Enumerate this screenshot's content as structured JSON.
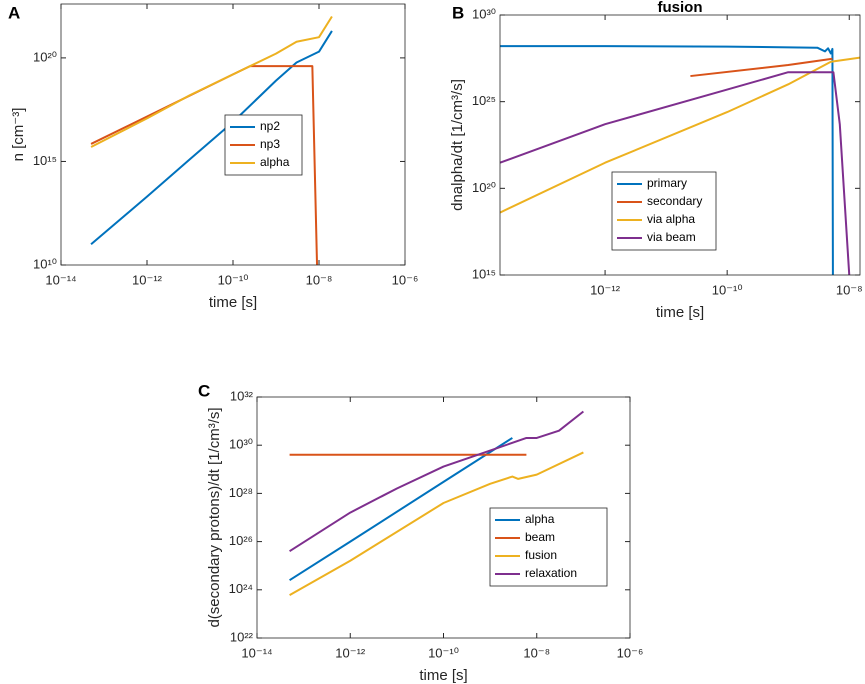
{
  "chart_data": [
    {
      "type": "line",
      "panel": "A",
      "xlabel": "time [s]",
      "ylabel": "n [cm⁻³]",
      "xscale": "log",
      "yscale": "log",
      "xlim": [
        1e-14,
        1e-06
      ],
      "ylim": [
        10000000000.0,
        4e+22
      ],
      "xticks": [
        {
          "value": 1e-14,
          "label": "10⁻¹⁴"
        },
        {
          "value": 1e-12,
          "label": "10⁻¹²"
        },
        {
          "value": 1e-10,
          "label": "10⁻¹⁰"
        },
        {
          "value": 1e-08,
          "label": "10⁻⁸"
        },
        {
          "value": 1e-06,
          "label": "10⁻⁶"
        }
      ],
      "yticks": [
        {
          "value": 10000000000.0,
          "label": "10¹⁰"
        },
        {
          "value": 1000000000000000.0,
          "label": "10¹⁵"
        },
        {
          "value": 1e+20,
          "label": "10²⁰"
        }
      ],
      "series": [
        {
          "name": "np2",
          "color": "#0072BD",
          "x": [
            5e-14,
            1e-12,
            1e-11,
            1e-10,
            1e-09,
            3e-09,
            1e-08,
            2e-08
          ],
          "values": [
            100000000000.0,
            20000000000000.0,
            1300000000000000.0,
            8e+16,
            8e+18,
            6e+19,
            2e+20,
            2e+21
          ]
        },
        {
          "name": "np3",
          "color": "#D95319",
          "x": [
            5e-14,
            1e-10,
            2.5e-10,
            7e-09,
            9e-09
          ],
          "values": [
            7000000000000000.0,
            1.6e+19,
            4e+19,
            4e+19,
            10000000000.0
          ]
        },
        {
          "name": "alpha",
          "color": "#EDB120",
          "x": [
            5e-14,
            1e-12,
            1e-11,
            1e-10,
            1e-09,
            3e-09,
            1e-08,
            2e-08
          ],
          "values": [
            5000000000000000.0,
            1.2e+17,
            1.6e+18,
            1.6e+19,
            1.6e+20,
            6e+20,
            1e+21,
            1e+22
          ]
        }
      ]
    },
    {
      "type": "line",
      "panel": "B",
      "title": "fusion",
      "xlabel": "time [s]",
      "ylabel": "dnalpha/dt [1/cm³/s]",
      "xscale": "log",
      "yscale": "log",
      "xlim": [
        1.9e-14,
        1.5e-08
      ],
      "ylim": [
        1000000000000000.0,
        1e+30
      ],
      "xticks": [
        {
          "value": 1e-12,
          "label": "10⁻¹²"
        },
        {
          "value": 1e-10,
          "label": "10⁻¹⁰"
        },
        {
          "value": 1e-08,
          "label": "10⁻⁸"
        }
      ],
      "yticks": [
        {
          "value": 1000000000000000.0,
          "label": "10¹⁵"
        },
        {
          "value": 1e+20,
          "label": "10²⁰"
        },
        {
          "value": 1e+25,
          "label": "10²⁵"
        },
        {
          "value": 1e+30,
          "label": "10³⁰"
        }
      ],
      "series": [
        {
          "name": "primary",
          "color": "#0072BD",
          "x": [
            1.9e-14,
            1e-12,
            1e-10,
            3e-09,
            4e-09,
            4.5e-09,
            5e-09,
            5.3e-09,
            5.4e-09
          ],
          "values": [
            1.6e+28,
            1.6e+28,
            1.5e+28,
            1.3e+28,
            8e+27,
            1.2e+28,
            6e+27,
            1.1e+28,
            1000000000000000.0
          ]
        },
        {
          "name": "secondary",
          "color": "#D95319",
          "x": [
            2.5e-11,
            1e-09,
            5.3e-09
          ],
          "values": [
            3e+26,
            1.3e+27,
            3e+27
          ]
        },
        {
          "name": "via alpha",
          "color": "#EDB120",
          "x": [
            1.9e-14,
            1e-12,
            1e-10,
            1e-09,
            5e-09,
            1.5e-08
          ],
          "values": [
            4e+18,
            3e+21,
            2.5e+24,
            1e+26,
            2e+27,
            3.5e+27
          ]
        },
        {
          "name": "via beam",
          "color": "#7E2F8E",
          "x": [
            1.9e-14,
            1e-12,
            1e-10,
            1e-09,
            5.5e-09,
            7e-09,
            1e-08
          ],
          "values": [
            3e+21,
            5e+23,
            5e+25,
            5e+26,
            5e+26,
            5e+23,
            1000000000000000.0
          ]
        }
      ]
    },
    {
      "type": "line",
      "panel": "C",
      "xlabel": "time [s]",
      "ylabel": "d(secondary protons)/dt [1/cm³/s]",
      "xscale": "log",
      "yscale": "log",
      "xlim": [
        1e-14,
        1e-06
      ],
      "ylim": [
        1e+22,
        1e+32
      ],
      "xticks": [
        {
          "value": 1e-14,
          "label": "10⁻¹⁴"
        },
        {
          "value": 1e-12,
          "label": "10⁻¹²"
        },
        {
          "value": 1e-10,
          "label": "10⁻¹⁰"
        },
        {
          "value": 1e-08,
          "label": "10⁻⁸"
        },
        {
          "value": 1e-06,
          "label": "10⁻⁶"
        }
      ],
      "yticks": [
        {
          "value": 1e+22,
          "label": "10²²"
        },
        {
          "value": 1e+24,
          "label": "10²⁴"
        },
        {
          "value": 1e+26,
          "label": "10²⁶"
        },
        {
          "value": 1e+28,
          "label": "10²⁸"
        },
        {
          "value": 1e+30,
          "label": "10³⁰"
        },
        {
          "value": 1e+32,
          "label": "10³²"
        }
      ],
      "series": [
        {
          "name": "alpha",
          "color": "#0072BD",
          "x": [
            5e-14,
            1e-12,
            1e-10,
            3e-09
          ],
          "values": [
            2.5e+24,
            1e+26,
            3e+28,
            2e+30
          ]
        },
        {
          "name": "beam",
          "color": "#D95319",
          "x": [
            5e-14,
            6e-09
          ],
          "values": [
            4e+29,
            4e+29
          ]
        },
        {
          "name": "fusion",
          "color": "#EDB120",
          "x": [
            5e-14,
            1e-12,
            1e-10,
            1e-09,
            3e-09,
            4e-09,
            1e-08,
            1e-07
          ],
          "values": [
            6e+23,
            1.6e+25,
            4e+27,
            2.5e+28,
            5e+28,
            4e+28,
            6e+28,
            5e+29
          ]
        },
        {
          "name": "relaxation",
          "color": "#7E2F8E",
          "x": [
            5e-14,
            1e-12,
            1e-11,
            1e-10,
            1e-09,
            6e-09,
            1e-08,
            3e-08,
            1e-07
          ],
          "values": [
            4e+25,
            1.6e+27,
            1.6e+28,
            1.3e+29,
            6e+29,
            2e+30,
            2e+30,
            4e+30,
            2.5e+31
          ]
        }
      ]
    }
  ]
}
